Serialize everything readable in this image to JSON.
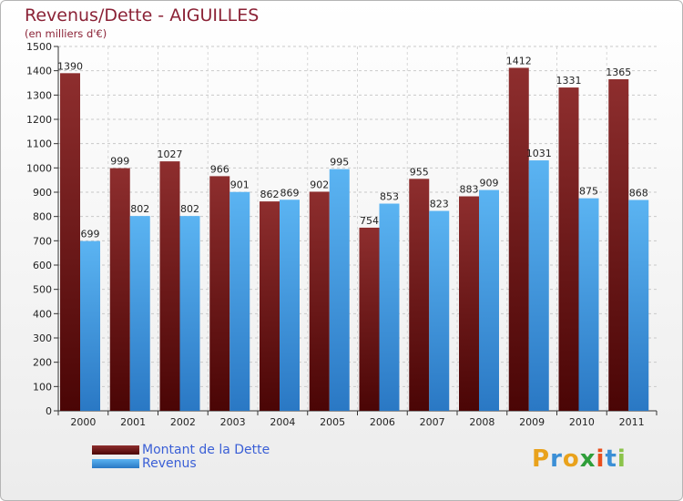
{
  "header": {
    "title": "Revenus/Dette - AIGUILLES",
    "subtitle": "(en milliers d'€)"
  },
  "legend": {
    "items": [
      {
        "label": "Montant de la Dette",
        "color": "#7a1a1a"
      },
      {
        "label": "Revenus",
        "color": "#4aa3e8"
      }
    ]
  },
  "brand": {
    "letters": [
      "P",
      "r",
      "o",
      "x",
      "i",
      "t",
      "i"
    ],
    "colors": [
      "#e9a21c",
      "#3b8fd6",
      "#e9a21c",
      "#2f9e3a",
      "#e94e1c",
      "#3b8fd6",
      "#8bc34a"
    ]
  },
  "chart_data": {
    "type": "bar",
    "categories": [
      "2000",
      "2001",
      "2002",
      "2003",
      "2004",
      "2005",
      "2006",
      "2007",
      "2008",
      "2009",
      "2010",
      "2011"
    ],
    "series": [
      {
        "name": "Montant de la Dette",
        "values": [
          1390,
          999,
          1027,
          966,
          862,
          902,
          754,
          955,
          883,
          1412,
          1331,
          1365
        ],
        "color": "#7a1a1a"
      },
      {
        "name": "Revenus",
        "values": [
          699,
          802,
          802,
          901,
          869,
          995,
          853,
          823,
          909,
          1031,
          875,
          868
        ],
        "color": "#4aa3e8"
      }
    ],
    "title": "Revenus/Dette - AIGUILLES",
    "subtitle": "(en milliers d'€)",
    "xlabel": "",
    "ylabel": "",
    "ylim": [
      0,
      1500
    ],
    "ytick_step": 100,
    "grid": true,
    "legend_position": "bottom-left"
  }
}
